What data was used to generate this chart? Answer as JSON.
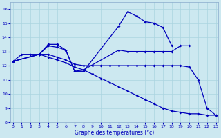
{
  "xlabel": "Graphe des températures (°c)",
  "background_color": "#cce8f0",
  "grid_color": "#aad4e0",
  "line_color": "#0000bb",
  "ylim": [
    8,
    16.5
  ],
  "xlim": [
    -0.3,
    23.3
  ],
  "yticks": [
    8,
    9,
    10,
    11,
    12,
    13,
    14,
    15,
    16
  ],
  "xticks": [
    0,
    1,
    2,
    3,
    4,
    5,
    6,
    7,
    8,
    9,
    10,
    11,
    12,
    13,
    14,
    15,
    16,
    17,
    18,
    19,
    20,
    21,
    22,
    23
  ],
  "series": [
    {
      "x": [
        0,
        1,
        2,
        3,
        4,
        5,
        6,
        7,
        8,
        12,
        13,
        14,
        15,
        16,
        17,
        18
      ],
      "y": [
        12.3,
        12.8,
        12.8,
        12.8,
        13.5,
        13.5,
        13.1,
        11.6,
        11.6,
        14.8,
        15.8,
        15.5,
        15.1,
        15.0,
        14.7,
        13.4
      ]
    },
    {
      "x": [
        0,
        3,
        4,
        5,
        6,
        7,
        8,
        12,
        13,
        14,
        15,
        16,
        17,
        18,
        19,
        20
      ],
      "y": [
        12.3,
        12.8,
        13.4,
        13.3,
        13.1,
        11.6,
        11.7,
        13.1,
        13.0,
        13.0,
        13.0,
        13.0,
        13.0,
        13.0,
        13.4,
        13.4
      ]
    },
    {
      "x": [
        0,
        3,
        4,
        5,
        6,
        7,
        8,
        9,
        10,
        11,
        12,
        13,
        14,
        15,
        16,
        17,
        18,
        19,
        20,
        21,
        22,
        23
      ],
      "y": [
        12.3,
        12.8,
        12.8,
        12.6,
        12.4,
        12.1,
        12.0,
        12.0,
        12.0,
        12.0,
        12.0,
        12.0,
        12.0,
        12.0,
        12.0,
        12.0,
        12.0,
        12.0,
        11.9,
        11.0,
        9.0,
        8.5
      ]
    },
    {
      "x": [
        0,
        3,
        4,
        5,
        6,
        7,
        8,
        9,
        10,
        11,
        12,
        13,
        14,
        15,
        16,
        17,
        18,
        19,
        20,
        21,
        22,
        23
      ],
      "y": [
        12.3,
        12.8,
        12.6,
        12.4,
        12.2,
        11.9,
        11.7,
        11.4,
        11.1,
        10.8,
        10.5,
        10.2,
        9.9,
        9.6,
        9.3,
        9.0,
        8.8,
        8.7,
        8.6,
        8.6,
        8.5,
        8.5
      ]
    }
  ]
}
